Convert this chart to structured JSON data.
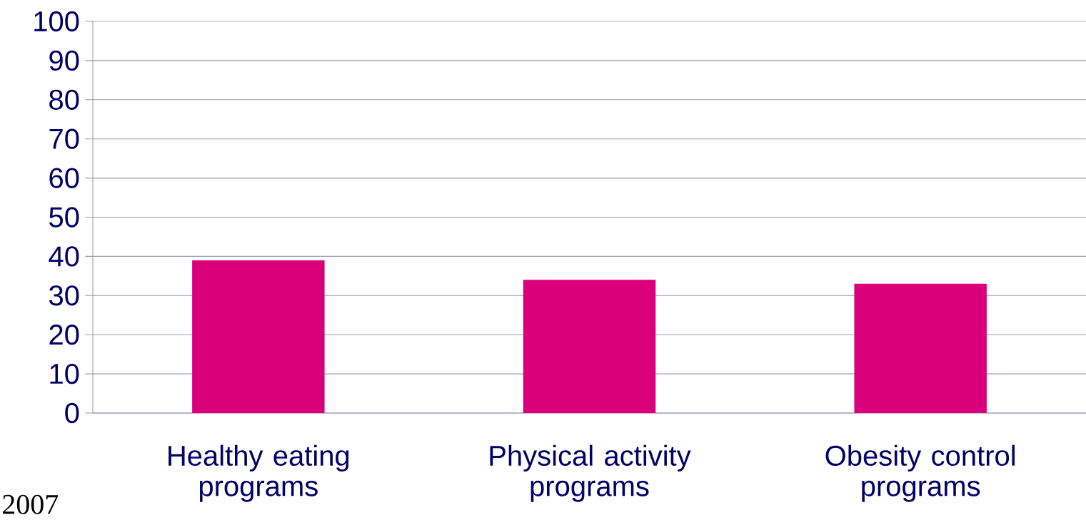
{
  "chart_data": {
    "type": "bar",
    "categories": [
      "Healthy eating programs",
      "Physical activity programs",
      "Obesity control programs"
    ],
    "values": [
      39,
      34,
      33
    ],
    "color": "#d9007a",
    "ylim": [
      0,
      100
    ],
    "yticks": [
      0,
      10,
      20,
      30,
      40,
      50,
      60,
      70,
      80,
      90,
      100
    ],
    "grid": "y",
    "annotations": [
      "2007"
    ]
  }
}
